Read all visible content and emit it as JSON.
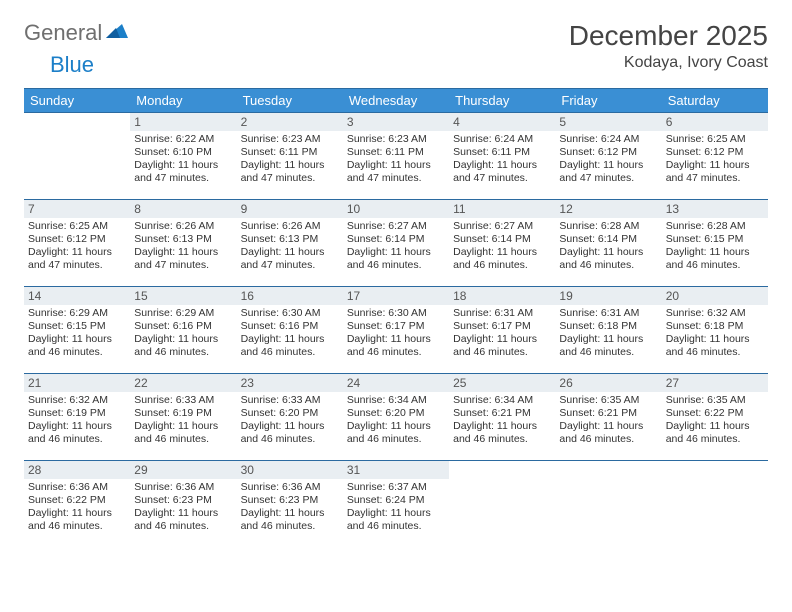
{
  "brand": {
    "part1": "General",
    "part2": "Blue"
  },
  "title": "December 2025",
  "location": "Kodaya, Ivory Coast",
  "colors": {
    "header_bg": "#3a8fd4",
    "header_text": "#ffffff",
    "rule": "#2b6aa0",
    "daynum_bg": "#e9eef2",
    "text": "#333333",
    "logo_gray": "#6f6f6f",
    "logo_blue": "#1c7fc8"
  },
  "weekdays": [
    "Sunday",
    "Monday",
    "Tuesday",
    "Wednesday",
    "Thursday",
    "Friday",
    "Saturday"
  ],
  "weeks": [
    [
      {
        "day": "",
        "empty": true
      },
      {
        "day": "1",
        "sunrise": "Sunrise: 6:22 AM",
        "sunset": "Sunset: 6:10 PM",
        "daylight": "Daylight: 11 hours and 47 minutes."
      },
      {
        "day": "2",
        "sunrise": "Sunrise: 6:23 AM",
        "sunset": "Sunset: 6:11 PM",
        "daylight": "Daylight: 11 hours and 47 minutes."
      },
      {
        "day": "3",
        "sunrise": "Sunrise: 6:23 AM",
        "sunset": "Sunset: 6:11 PM",
        "daylight": "Daylight: 11 hours and 47 minutes."
      },
      {
        "day": "4",
        "sunrise": "Sunrise: 6:24 AM",
        "sunset": "Sunset: 6:11 PM",
        "daylight": "Daylight: 11 hours and 47 minutes."
      },
      {
        "day": "5",
        "sunrise": "Sunrise: 6:24 AM",
        "sunset": "Sunset: 6:12 PM",
        "daylight": "Daylight: 11 hours and 47 minutes."
      },
      {
        "day": "6",
        "sunrise": "Sunrise: 6:25 AM",
        "sunset": "Sunset: 6:12 PM",
        "daylight": "Daylight: 11 hours and 47 minutes."
      }
    ],
    [
      {
        "day": "7",
        "sunrise": "Sunrise: 6:25 AM",
        "sunset": "Sunset: 6:12 PM",
        "daylight": "Daylight: 11 hours and 47 minutes."
      },
      {
        "day": "8",
        "sunrise": "Sunrise: 6:26 AM",
        "sunset": "Sunset: 6:13 PM",
        "daylight": "Daylight: 11 hours and 47 minutes."
      },
      {
        "day": "9",
        "sunrise": "Sunrise: 6:26 AM",
        "sunset": "Sunset: 6:13 PM",
        "daylight": "Daylight: 11 hours and 47 minutes."
      },
      {
        "day": "10",
        "sunrise": "Sunrise: 6:27 AM",
        "sunset": "Sunset: 6:14 PM",
        "daylight": "Daylight: 11 hours and 46 minutes."
      },
      {
        "day": "11",
        "sunrise": "Sunrise: 6:27 AM",
        "sunset": "Sunset: 6:14 PM",
        "daylight": "Daylight: 11 hours and 46 minutes."
      },
      {
        "day": "12",
        "sunrise": "Sunrise: 6:28 AM",
        "sunset": "Sunset: 6:14 PM",
        "daylight": "Daylight: 11 hours and 46 minutes."
      },
      {
        "day": "13",
        "sunrise": "Sunrise: 6:28 AM",
        "sunset": "Sunset: 6:15 PM",
        "daylight": "Daylight: 11 hours and 46 minutes."
      }
    ],
    [
      {
        "day": "14",
        "sunrise": "Sunrise: 6:29 AM",
        "sunset": "Sunset: 6:15 PM",
        "daylight": "Daylight: 11 hours and 46 minutes."
      },
      {
        "day": "15",
        "sunrise": "Sunrise: 6:29 AM",
        "sunset": "Sunset: 6:16 PM",
        "daylight": "Daylight: 11 hours and 46 minutes."
      },
      {
        "day": "16",
        "sunrise": "Sunrise: 6:30 AM",
        "sunset": "Sunset: 6:16 PM",
        "daylight": "Daylight: 11 hours and 46 minutes."
      },
      {
        "day": "17",
        "sunrise": "Sunrise: 6:30 AM",
        "sunset": "Sunset: 6:17 PM",
        "daylight": "Daylight: 11 hours and 46 minutes."
      },
      {
        "day": "18",
        "sunrise": "Sunrise: 6:31 AM",
        "sunset": "Sunset: 6:17 PM",
        "daylight": "Daylight: 11 hours and 46 minutes."
      },
      {
        "day": "19",
        "sunrise": "Sunrise: 6:31 AM",
        "sunset": "Sunset: 6:18 PM",
        "daylight": "Daylight: 11 hours and 46 minutes."
      },
      {
        "day": "20",
        "sunrise": "Sunrise: 6:32 AM",
        "sunset": "Sunset: 6:18 PM",
        "daylight": "Daylight: 11 hours and 46 minutes."
      }
    ],
    [
      {
        "day": "21",
        "sunrise": "Sunrise: 6:32 AM",
        "sunset": "Sunset: 6:19 PM",
        "daylight": "Daylight: 11 hours and 46 minutes."
      },
      {
        "day": "22",
        "sunrise": "Sunrise: 6:33 AM",
        "sunset": "Sunset: 6:19 PM",
        "daylight": "Daylight: 11 hours and 46 minutes."
      },
      {
        "day": "23",
        "sunrise": "Sunrise: 6:33 AM",
        "sunset": "Sunset: 6:20 PM",
        "daylight": "Daylight: 11 hours and 46 minutes."
      },
      {
        "day": "24",
        "sunrise": "Sunrise: 6:34 AM",
        "sunset": "Sunset: 6:20 PM",
        "daylight": "Daylight: 11 hours and 46 minutes."
      },
      {
        "day": "25",
        "sunrise": "Sunrise: 6:34 AM",
        "sunset": "Sunset: 6:21 PM",
        "daylight": "Daylight: 11 hours and 46 minutes."
      },
      {
        "day": "26",
        "sunrise": "Sunrise: 6:35 AM",
        "sunset": "Sunset: 6:21 PM",
        "daylight": "Daylight: 11 hours and 46 minutes."
      },
      {
        "day": "27",
        "sunrise": "Sunrise: 6:35 AM",
        "sunset": "Sunset: 6:22 PM",
        "daylight": "Daylight: 11 hours and 46 minutes."
      }
    ],
    [
      {
        "day": "28",
        "sunrise": "Sunrise: 6:36 AM",
        "sunset": "Sunset: 6:22 PM",
        "daylight": "Daylight: 11 hours and 46 minutes."
      },
      {
        "day": "29",
        "sunrise": "Sunrise: 6:36 AM",
        "sunset": "Sunset: 6:23 PM",
        "daylight": "Daylight: 11 hours and 46 minutes."
      },
      {
        "day": "30",
        "sunrise": "Sunrise: 6:36 AM",
        "sunset": "Sunset: 6:23 PM",
        "daylight": "Daylight: 11 hours and 46 minutes."
      },
      {
        "day": "31",
        "sunrise": "Sunrise: 6:37 AM",
        "sunset": "Sunset: 6:24 PM",
        "daylight": "Daylight: 11 hours and 46 minutes."
      },
      {
        "day": "",
        "empty": true
      },
      {
        "day": "",
        "empty": true
      },
      {
        "day": "",
        "empty": true
      }
    ]
  ]
}
